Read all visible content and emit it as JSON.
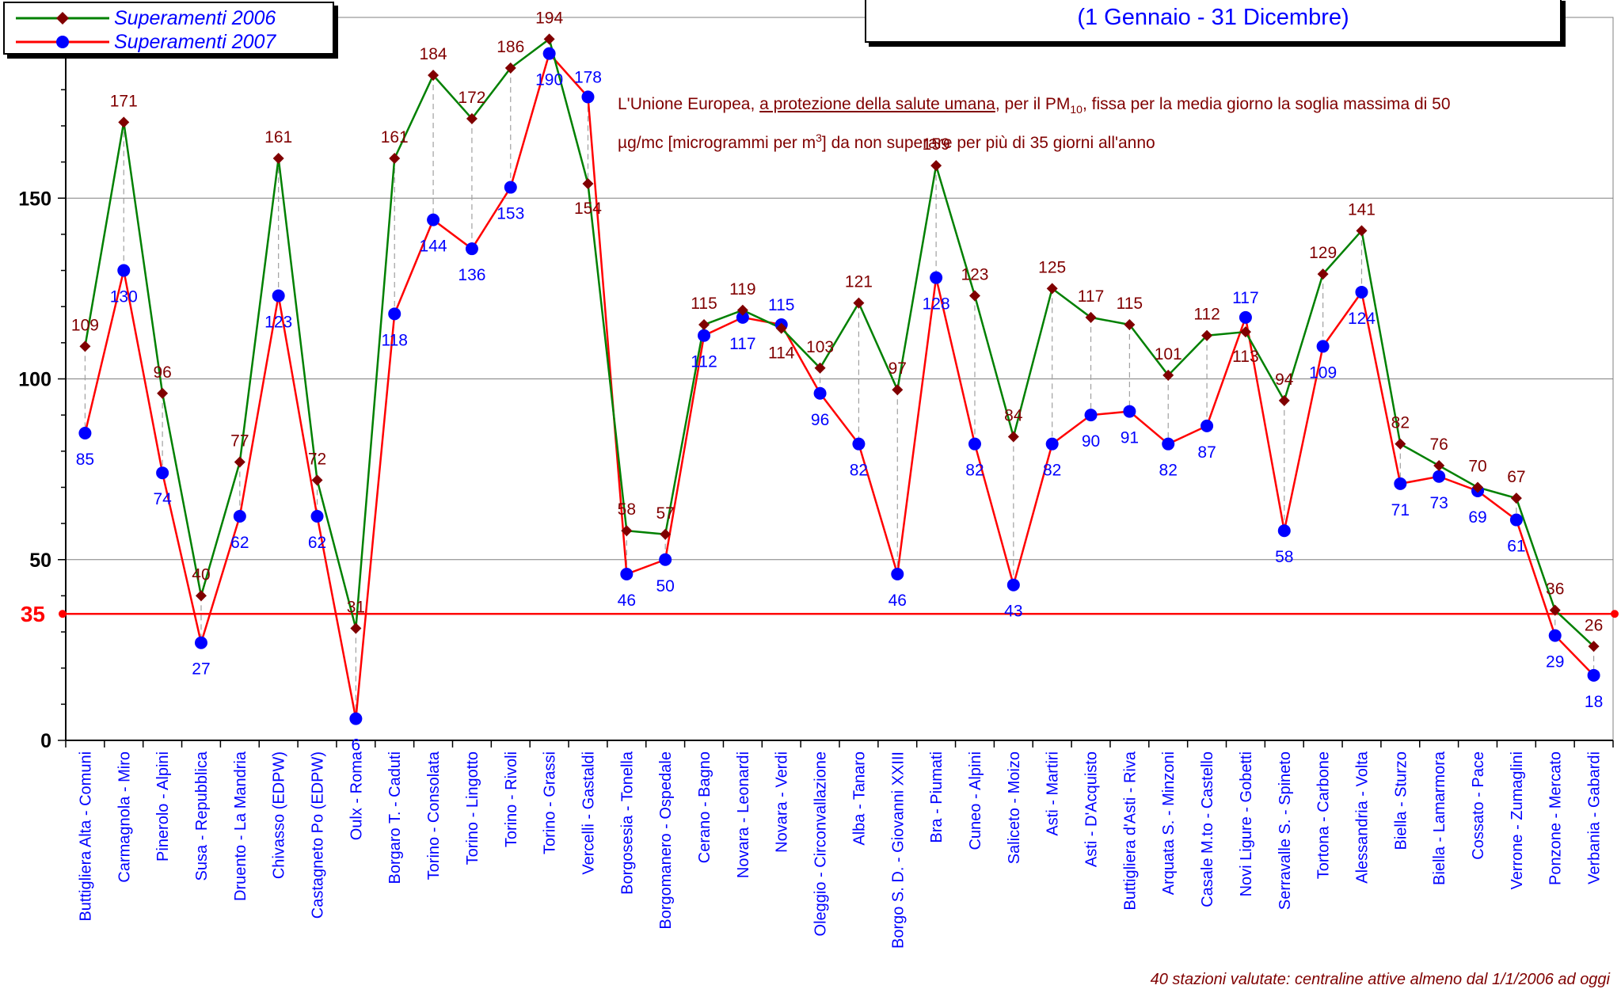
{
  "legend": {
    "series_2006": "Superamenti 2006",
    "series_2007": "Superamenti 2007"
  },
  "period": "(1 Gennaio - 31 Dicembre)",
  "note": {
    "part1": "L'Unione Europea, ",
    "underlined": "a protezione della salute umana",
    "part2": ", per il PM",
    "subscript": "10",
    "part3": ", fissa per la media giorno la soglia massima di 50",
    "part4": "µg/mc [microgrammi per m",
    "superscript": "3",
    "part5": "] da non superare per più di 35 giorni all'anno"
  },
  "footnote": "40 stazioni valutate: centraline attive almeno dal 1/1/2006 ad oggi",
  "colors": {
    "s2006_line": "#008000",
    "s2006_marker": "#800000",
    "s2006_label": "#800000",
    "s2007_line": "#ff0000",
    "s2007_marker": "#0000ff",
    "s2007_label": "#0000ff",
    "threshold": "#ff0000",
    "drop_line": "#a0a0a0"
  },
  "chart_data": {
    "type": "line",
    "categories": [
      "Buttigliera Alta - Comuni",
      "Carmagnola - Miro",
      "Pinerolo - Alpini",
      "Susa - Repubblica",
      "Druento - La Mandria",
      "Chivasso (EDPW)",
      "Castagneto Po (EDPW)",
      "Oulx - Roma",
      "Borgaro T. - Caduti",
      "Torino - Consolata",
      "Torino - Lingotto",
      "Torino - Rivoli",
      "Torino - Grassi",
      "Vercelli - Gastaldi",
      "Borgosesia - Tonella",
      "Borgomanero - Ospedale",
      "Cerano - Bagno",
      "Novara - Leonardi",
      "Novara - Verdi",
      "Oleggio - Circonvallazione",
      "Alba - Tanaro",
      "Borgo S. D. - Giovanni XXIII",
      "Bra - Piumati",
      "Cuneo - Alpini",
      "Saliceto - Moizo",
      "Asti - Martiri",
      "Asti - D'Acquisto",
      "Buttigliera d'Asti - Riva",
      "Arquata S. - Minzoni",
      "Casale M.to - Castello",
      "Novi Ligure - Gobetti",
      "Serravalle S. - Spineto",
      "Tortona - Carbone",
      "Alessandria - Volta",
      "Biella - Sturzo",
      "Biella - Lamarmora",
      "Cossato - Pace",
      "Verrone - Zumaglini",
      "Ponzone - Mercato",
      "Verbania - Gabardi"
    ],
    "series": [
      {
        "name": "Superamenti 2006",
        "values": [
          109,
          171,
          96,
          40,
          77,
          161,
          72,
          31,
          161,
          184,
          172,
          186,
          194,
          154,
          58,
          57,
          115,
          119,
          114,
          103,
          121,
          97,
          159,
          123,
          84,
          125,
          117,
          115,
          101,
          112,
          113,
          94,
          129,
          141,
          82,
          76,
          70,
          67,
          36,
          26
        ]
      },
      {
        "name": "Superamenti 2007",
        "values": [
          85,
          130,
          74,
          27,
          62,
          123,
          62,
          6,
          118,
          144,
          136,
          153,
          190,
          178,
          46,
          50,
          112,
          117,
          115,
          96,
          82,
          46,
          128,
          82,
          43,
          82,
          90,
          91,
          82,
          87,
          117,
          58,
          109,
          124,
          71,
          73,
          69,
          61,
          29,
          18
        ]
      }
    ],
    "show_labels_2006": [
      true,
      true,
      true,
      true,
      true,
      true,
      true,
      true,
      true,
      true,
      true,
      true,
      true,
      true,
      true,
      true,
      true,
      true,
      true,
      true,
      true,
      true,
      true,
      true,
      true,
      true,
      true,
      true,
      true,
      true,
      true,
      true,
      true,
      true,
      true,
      true,
      true,
      true,
      true,
      true
    ],
    "show_labels_2007": [
      true,
      true,
      true,
      true,
      true,
      true,
      true,
      true,
      true,
      true,
      true,
      true,
      true,
      true,
      true,
      true,
      true,
      true,
      true,
      true,
      true,
      true,
      true,
      true,
      true,
      true,
      true,
      true,
      true,
      true,
      true,
      true,
      true,
      true,
      true,
      true,
      true,
      true,
      true,
      true
    ],
    "threshold": {
      "value": 35,
      "label": "35"
    },
    "yticks": [
      0,
      50,
      100,
      150
    ],
    "ylim": [
      0,
      200
    ],
    "grid": true
  }
}
